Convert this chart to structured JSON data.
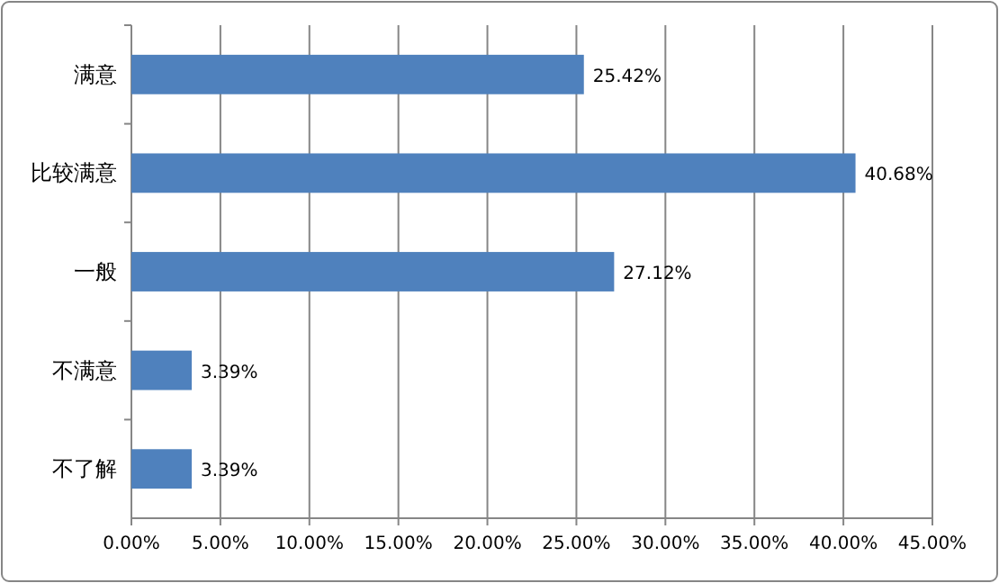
{
  "chart_data": {
    "type": "bar",
    "orientation": "horizontal",
    "categories": [
      "满意",
      "比较满意",
      "一般",
      "不满意",
      "不了解"
    ],
    "values": [
      25.42,
      40.68,
      27.12,
      3.39,
      3.39
    ],
    "value_labels": [
      "25.42%",
      "40.68%",
      "27.12%",
      "3.39%",
      "3.39%"
    ],
    "color": "#4f81bd",
    "xlim": [
      0,
      45
    ],
    "xticks": [
      {
        "value": 0,
        "label": "0.00%"
      },
      {
        "value": 5,
        "label": "5.00%"
      },
      {
        "value": 10,
        "label": "10.00%"
      },
      {
        "value": 15,
        "label": "15.00%"
      },
      {
        "value": 20,
        "label": "20.00%"
      },
      {
        "value": 25,
        "label": "25.00%"
      },
      {
        "value": 30,
        "label": "30.00%"
      },
      {
        "value": 35,
        "label": "35.00%"
      },
      {
        "value": 40,
        "label": "40.00%"
      },
      {
        "value": 45,
        "label": "45.00%"
      }
    ],
    "grid": "x"
  }
}
